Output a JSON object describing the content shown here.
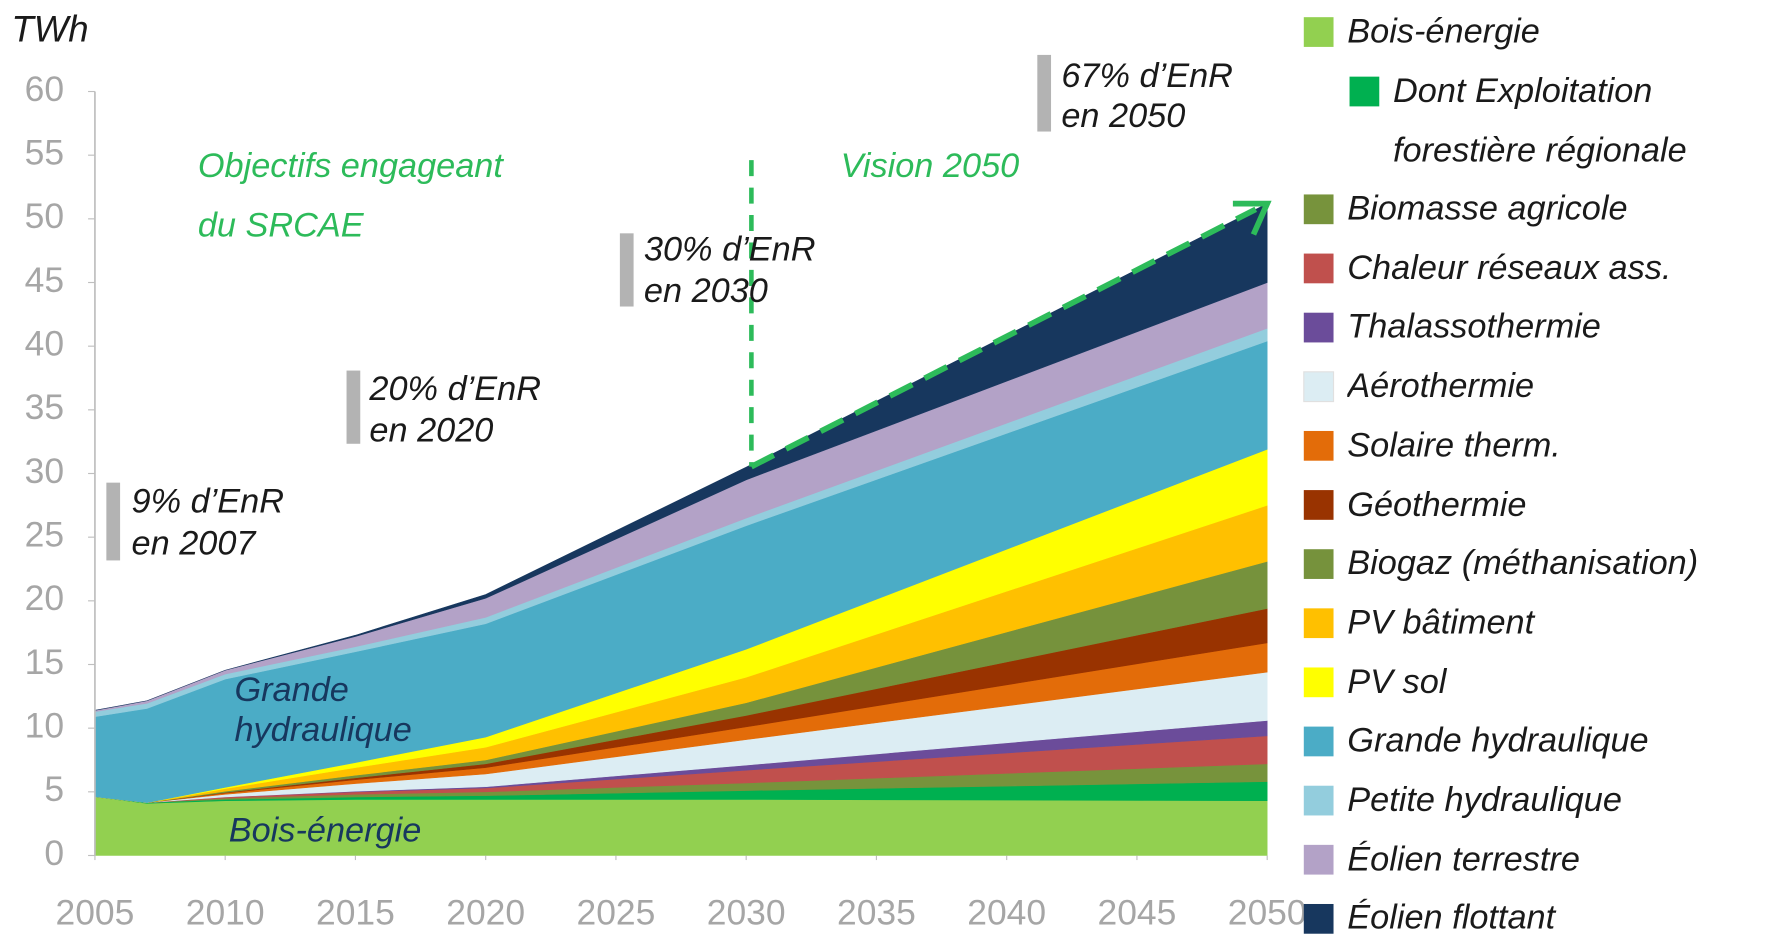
{
  "chart_data": {
    "type": "stacked_area",
    "y_label": "TWh",
    "x": [
      2005,
      2007,
      2010,
      2015,
      2020,
      2030,
      2050
    ],
    "xlim": [
      2005,
      2050
    ],
    "xticks": [
      2005,
      2010,
      2015,
      2020,
      2025,
      2030,
      2035,
      2040,
      2045,
      2050
    ],
    "ylim": [
      0,
      60
    ],
    "yticks": [
      0,
      5,
      10,
      15,
      20,
      25,
      30,
      35,
      40,
      45,
      50,
      55,
      60
    ],
    "series": [
      {
        "name": "Bois-énergie",
        "color": "#92d050",
        "values": [
          4.6,
          4.1,
          4.3,
          4.4,
          4.4,
          4.4,
          4.3
        ]
      },
      {
        "name": "Dont Exploitation forestière régionale",
        "color": "#00b050",
        "values": [
          0,
          0.05,
          0.1,
          0.2,
          0.3,
          0.7,
          1.5
        ]
      },
      {
        "name": "Biomasse agricole",
        "color": "#77933c",
        "values": [
          0,
          0,
          0.1,
          0.2,
          0.3,
          0.6,
          1.4
        ]
      },
      {
        "name": "Chaleur réseaux ass.",
        "color": "#c0504d",
        "values": [
          0,
          0,
          0.1,
          0.2,
          0.3,
          1.0,
          2.2
        ]
      },
      {
        "name": "Thalassothermie",
        "color": "#6b4c9a",
        "values": [
          0,
          0,
          0,
          0.05,
          0.1,
          0.4,
          1.2
        ]
      },
      {
        "name": "Aérothermie",
        "color": "#dcedf3",
        "values": [
          0,
          0,
          0.2,
          0.6,
          1.0,
          2.0,
          3.8
        ]
      },
      {
        "name": "Solaire therm.",
        "color": "#e36c09",
        "values": [
          0,
          0,
          0.1,
          0.3,
          0.5,
          1.0,
          2.3
        ]
      },
      {
        "name": "Géothermie",
        "color": "#993300",
        "values": [
          0,
          0,
          0.05,
          0.15,
          0.3,
          0.9,
          2.7
        ]
      },
      {
        "name": "Biogaz (méthanisation)",
        "color": "#76923c",
        "values": [
          0,
          0,
          0.1,
          0.2,
          0.3,
          1.0,
          3.7
        ]
      },
      {
        "name": "PV bâtiment",
        "color": "#ffc000",
        "values": [
          0,
          0,
          0.2,
          0.6,
          1.0,
          2.0,
          4.4
        ]
      },
      {
        "name": "PV sol",
        "color": "#ffff00",
        "values": [
          0,
          0,
          0.1,
          0.4,
          0.8,
          2.2,
          4.4
        ]
      },
      {
        "name": "Grande hydraulique",
        "color": "#4bacc6",
        "values": [
          6.3,
          7.4,
          8.5,
          8.7,
          8.9,
          9.7,
          8.5
        ]
      },
      {
        "name": "Petite hydraulique",
        "color": "#93cddd",
        "values": [
          0.4,
          0.4,
          0.4,
          0.4,
          0.5,
          0.6,
          1.0
        ]
      },
      {
        "name": "Éolien terrestre",
        "color": "#b3a2c7",
        "values": [
          0.1,
          0.2,
          0.3,
          0.8,
          1.5,
          3.0,
          3.6
        ]
      },
      {
        "name": "Éolien flottant",
        "color": "#17375e",
        "values": [
          0,
          0,
          0,
          0.1,
          0.3,
          1.0,
          6.2
        ]
      }
    ],
    "annotations": [
      {
        "lines": [
          "9% d’EnR",
          "en 2007"
        ]
      },
      {
        "lines": [
          "20% d’EnR",
          "en 2020"
        ]
      },
      {
        "lines": [
          "30% d’EnR",
          "en 2030"
        ]
      },
      {
        "lines": [
          "67% d’EnR",
          "en 2050"
        ]
      },
      {
        "lines": [
          "Objectifs engageant",
          "du SRCAE"
        ]
      },
      {
        "lines": [
          "Vision 2050"
        ]
      },
      {
        "lines": [
          "Grande",
          "hydraulique"
        ]
      },
      {
        "lines": [
          "Bois-énergie"
        ]
      }
    ]
  }
}
